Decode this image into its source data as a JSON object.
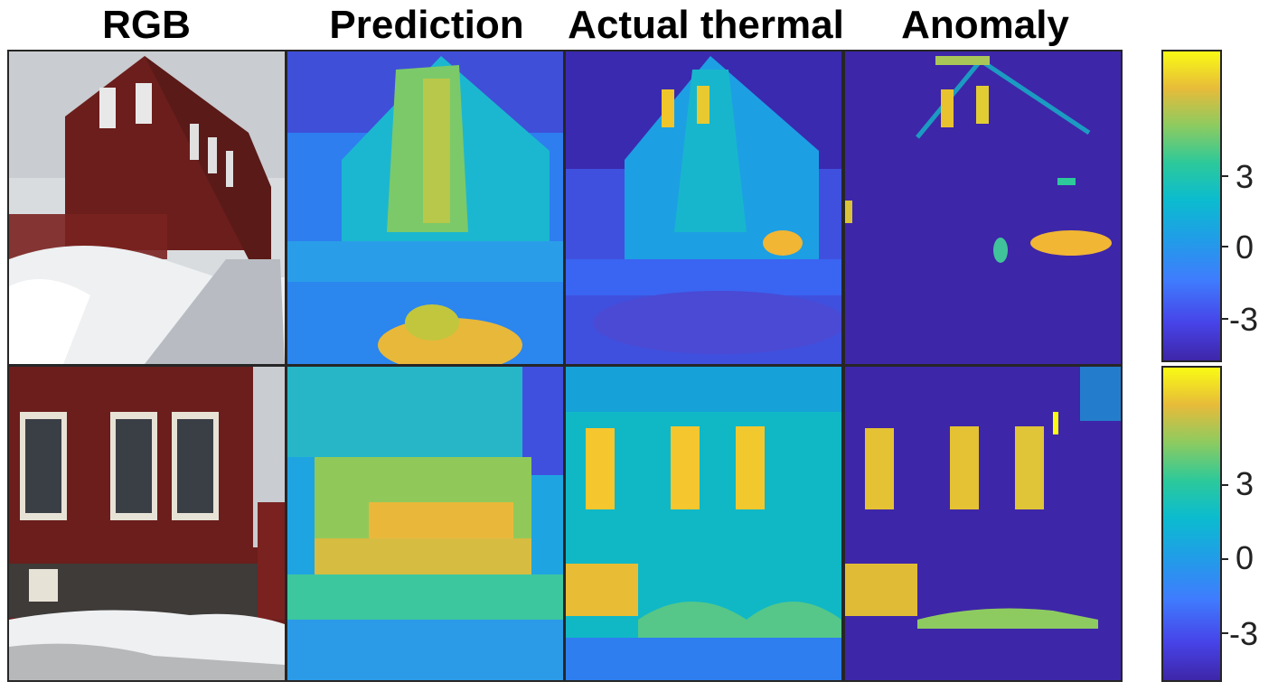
{
  "columns": [
    "RGB",
    "Prediction",
    "Actual thermal",
    "Anomaly"
  ],
  "colorbars": [
    {
      "ticks": [
        "3",
        "0",
        "-3"
      ]
    },
    {
      "ticks": [
        "3",
        "0",
        "-3"
      ]
    }
  ],
  "colors": {
    "cmap_low": "#3e26a8",
    "cmap_mid": "#0bbccf",
    "cmap_high": "#f9fb14",
    "house_red": "#6b1e1c",
    "snow": "#eef0f2"
  }
}
